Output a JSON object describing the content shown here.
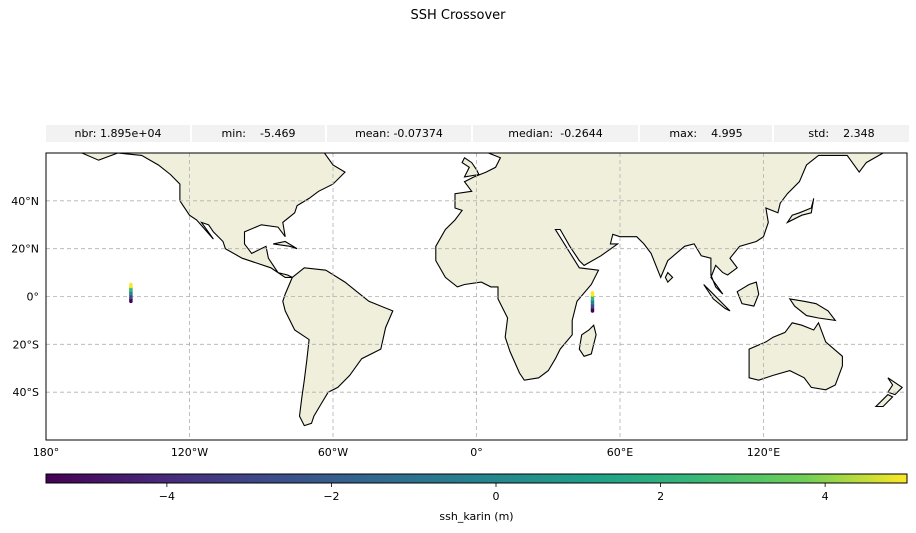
{
  "chart_data": {
    "type": "map",
    "title": "SSH Crossover",
    "stats": [
      {
        "label": "nbr:",
        "value": "1.895e+04"
      },
      {
        "label": "min:",
        "value": "   -5.469"
      },
      {
        "label": "mean:",
        "value": "-0.07374"
      },
      {
        "label": "median:",
        "value": " -0.2644"
      },
      {
        "label": "max:",
        "value": "   4.995"
      },
      {
        "label": "std:",
        "value": "   2.348"
      }
    ],
    "lon_range": [
      -180,
      180
    ],
    "lat_range": [
      -60,
      60
    ],
    "x_ticks": [
      {
        "lon": -180,
        "label": "180°"
      },
      {
        "lon": -120,
        "label": "120°W"
      },
      {
        "lon": -60,
        "label": "60°W"
      },
      {
        "lon": 0,
        "label": "0°"
      },
      {
        "lon": 60,
        "label": "60°E"
      },
      {
        "lon": 120,
        "label": "120°E"
      }
    ],
    "y_ticks": [
      {
        "lat": 40,
        "label": "40°N"
      },
      {
        "lat": 20,
        "label": "20°N"
      },
      {
        "lat": 0,
        "label": "0°"
      },
      {
        "lat": -20,
        "label": "20°S"
      },
      {
        "lat": -40,
        "label": "40°S"
      }
    ],
    "grid": true,
    "colorbar": {
      "colormap": "viridis",
      "vmin": -5.469,
      "vmax": 4.995,
      "ticks": [
        {
          "value": -4,
          "label": "−4"
        },
        {
          "value": -2,
          "label": "−2"
        },
        {
          "value": 0,
          "label": "0"
        },
        {
          "value": 2,
          "label": "2"
        },
        {
          "value": 4,
          "label": "4"
        }
      ],
      "label": "ssh_karin (m)"
    },
    "tracks": [
      {
        "lon": -144.5,
        "lat_min": -2.0,
        "lat_max": 5.0
      },
      {
        "lon": 48.5,
        "lat_min": -6.0,
        "lat_max": 1.5
      }
    ]
  },
  "colors": {
    "land": "#efefdb",
    "coast": "#000000",
    "grid": "#b0b0b0",
    "stat_bg": "#f2f2f2"
  }
}
